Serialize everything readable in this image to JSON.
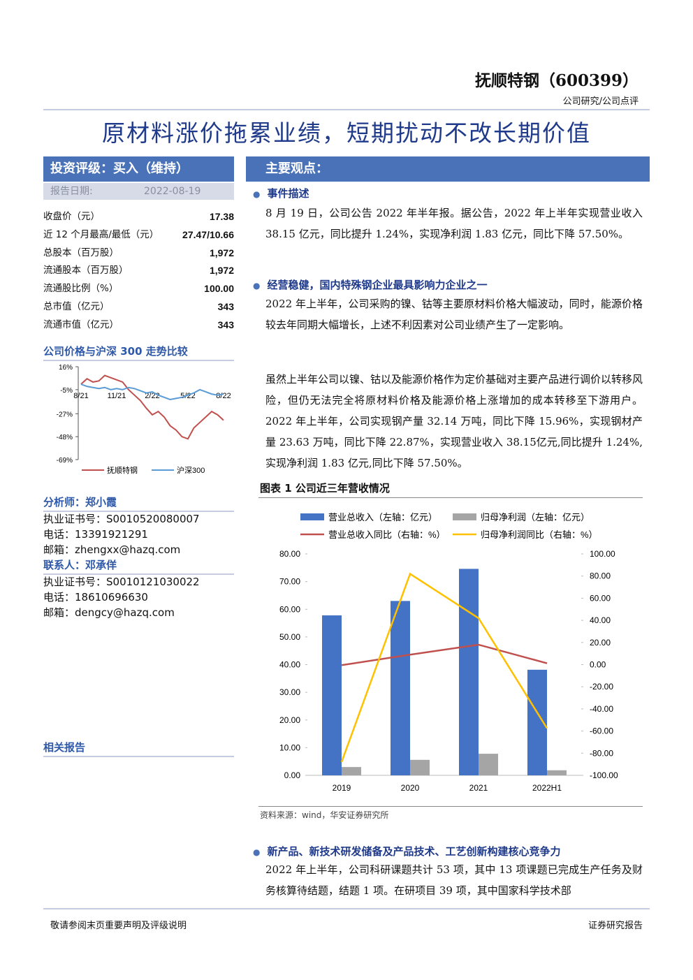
{
  "header": {
    "company": "抚顺特钢（600399）",
    "category": "公司研究/公司点评",
    "title": "原材料涨价拖累业绩，短期扰动不改长期价值"
  },
  "sidebar": {
    "rating": "投资评级：买入（维持）",
    "date_label": "报告日期:",
    "date": "2022-08-19",
    "stats": [
      [
        "收盘价（元）",
        "17.38"
      ],
      [
        "近 12 个月最高/最低（元）",
        "27.47/10.66"
      ],
      [
        "总股本（百万股）",
        "1,972"
      ],
      [
        "流通股本（百万股）",
        "1,972"
      ],
      [
        "流通股比例（%）",
        "100.00"
      ],
      [
        "总市值（亿元）",
        "343"
      ],
      [
        "流通市值（亿元）",
        "343"
      ]
    ],
    "chart_title": "公司价格与沪深 300 走势比较",
    "analyst": {
      "heading": "分析师：郑小霞",
      "lines": [
        "执业证书号：S0010520080007",
        "电话：13391921291",
        "邮箱：zhengxx@hazq.com"
      ]
    },
    "contact": {
      "heading": "联系人：邓承佯",
      "lines": [
        "执业证书号：S0010121030022",
        "电话：18610696630",
        "邮箱：dengcy@hazq.com"
      ]
    },
    "related": "相关报告"
  },
  "main": {
    "heading": "主要观点：",
    "sections": [
      {
        "heading": "事件描述",
        "paragraphs": [
          "8 月 19 日，公司公告 2022 年半年报。据公告，2022 年上半年实现营业收入 38.15 亿元，同比提升 1.24%，实现净利润 1.83 亿元，同比下降 57.50%。"
        ]
      },
      {
        "heading": "经营稳健，国内特殊钢企业最具影响力企业之一",
        "paragraphs": [
          "2022 年上半年，公司采购的镍、钴等主要原材料价格大幅波动，同时，能源价格较去年同期大幅增长，上述不利因素对公司业绩产生了一定影响。",
          "虽然上半年公司以镍、钴以及能源价格作为定价基础对主要产品进行调价以转移风险，但仍无法完全将原材料价格及能源价格上涨增加的成本转移至下游用户。2022 年上半年，公司实现钢产量 32.14 万吨，同比下降 15.96%，实现钢材产量 23.63 万吨，同比下降 22.87%，实现营业收入 38.15亿元,同比提升 1.24%,实现净利润 1.83 亿元,同比下降 57.50%。"
        ]
      },
      {
        "heading": "新产品、新技术研发储备及产品技术、工艺创新构建核心竞争力",
        "paragraphs": [
          "2022 年上半年，公司科研课题共计 53 项，其中 13 项课题已完成生产任务及财务核算待结题，结题 1 项。在研项目 39 项，其中国家科学技术部"
        ]
      }
    ],
    "figure_title": "图表 1 公司近三年营收情况",
    "source": "资料来源：wind，华安证券研究所"
  },
  "footer": {
    "left": "敬请参阅末页重要声明及评级说明",
    "right": "证券研究报告"
  },
  "chart_data": [
    {
      "type": "line",
      "categories": [
        "8/21",
        null,
        null,
        null,
        null,
        null,
        "11/21",
        null,
        null,
        null,
        null,
        null,
        "2/22",
        null,
        null,
        null,
        null,
        null,
        "5/22",
        null,
        null,
        null,
        null,
        null,
        "8/22"
      ],
      "series": [
        {
          "name": "抚顺特钢",
          "color": "#c0504d",
          "values": [
            0,
            5,
            2,
            3,
            8,
            6,
            4,
            2,
            -5,
            -10,
            -15,
            -22,
            -28,
            -25,
            -30,
            -38,
            -42,
            -48,
            -50,
            -40,
            -35,
            -30,
            -25,
            -28,
            -33
          ]
        },
        {
          "name": "沪深300",
          "color": "#5b9bd5",
          "values": [
            0,
            -2,
            -3,
            -4,
            -3,
            -5,
            -4,
            -5,
            -3,
            -4,
            -6,
            -8,
            -7,
            -10,
            -12,
            -14,
            -13,
            -12,
            -10,
            -8,
            -5,
            -7,
            -9,
            -10,
            -9
          ]
        }
      ],
      "ylim": [
        -69,
        16
      ],
      "yticks": [
        {
          "value": 16,
          "label": "16%"
        },
        {
          "value": -5,
          "label": "-5%"
        },
        {
          "value": -27,
          "label": "-27%"
        },
        {
          "value": -48,
          "label": "-48%"
        },
        {
          "value": -69,
          "label": "-69%"
        }
      ]
    },
    {
      "type": "bar",
      "categories": [
        "2019",
        "2020",
        "2021",
        "2022H1"
      ],
      "series": [
        {
          "name": "营业总收入（左轴：亿元）",
          "color": "#4472c4",
          "values": [
            57.8,
            63.0,
            74.6,
            38.15
          ]
        },
        {
          "name": "归母净利润（左轴：亿元）",
          "color": "#a5a5a5",
          "values": [
            3.0,
            5.6,
            7.8,
            1.83
          ]
        },
        {
          "name": "营业总收入同比（右轴：%）",
          "color": "#c0504d",
          "type": "line",
          "axis": "y2",
          "values": [
            -0.5,
            9,
            18,
            1.24
          ]
        },
        {
          "name": "归母净利润同比（右轴：%）",
          "color": "#ffc000",
          "type": "line",
          "axis": "y2",
          "values": [
            -88,
            82,
            42,
            -57.5
          ]
        }
      ],
      "ylim": [
        0,
        80
      ],
      "yticks": [
        {
          "value": 0,
          "label": "0.00"
        },
        {
          "value": 10,
          "label": "10.00"
        },
        {
          "value": 20,
          "label": "20.00"
        },
        {
          "value": 30,
          "label": "30.00"
        },
        {
          "value": 40,
          "label": "40.00"
        },
        {
          "value": 50,
          "label": "50.00"
        },
        {
          "value": 60,
          "label": "60.00"
        },
        {
          "value": 70,
          "label": "70.00"
        },
        {
          "value": 80,
          "label": "80.00"
        }
      ],
      "y2lim": [
        -100,
        100
      ],
      "y2ticks": [
        {
          "value": -100,
          "label": "-100.00"
        },
        {
          "value": -80,
          "label": "-80.00"
        },
        {
          "value": -60,
          "label": "-60.00"
        },
        {
          "value": -40,
          "label": "-40.00"
        },
        {
          "value": -20,
          "label": "-20.00"
        },
        {
          "value": 0,
          "label": "0.00"
        },
        {
          "value": 20,
          "label": "20.00"
        },
        {
          "value": 40,
          "label": "40.00"
        },
        {
          "value": 60,
          "label": "60.00"
        },
        {
          "value": 80,
          "label": "80.00"
        },
        {
          "value": 100,
          "label": "100.00"
        }
      ]
    }
  ]
}
